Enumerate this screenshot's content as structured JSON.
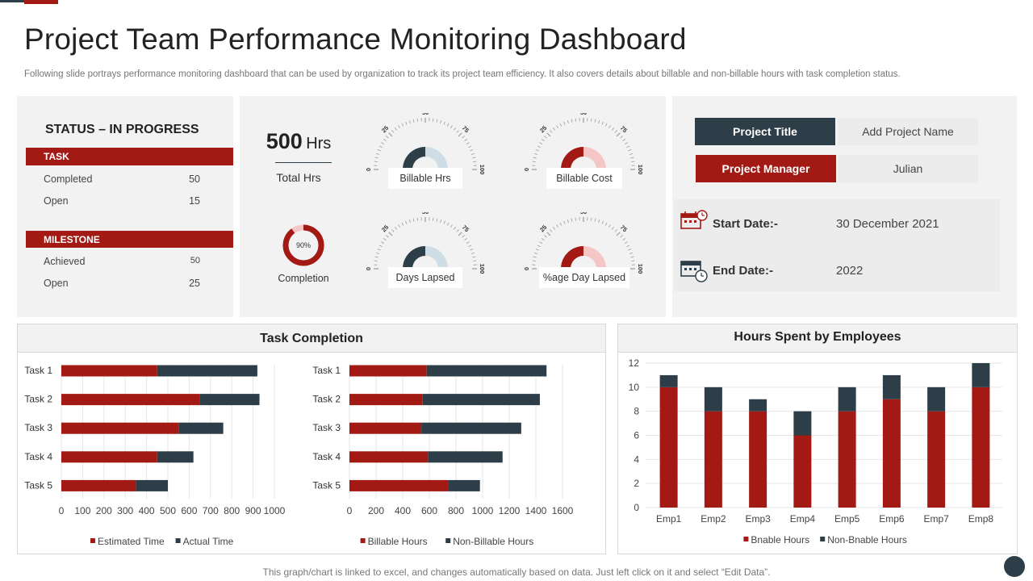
{
  "header": {
    "title": "Project Team Performance Monitoring Dashboard",
    "subtitle": "Following slide portrays performance monitoring dashboard that can be used by organization to track its project team efficiency. It also covers details about billable and non-billable hours with task completion status."
  },
  "status": {
    "title": "STATUS – IN PROGRESS",
    "task_header": "TASK",
    "task_rows": [
      {
        "label": "Completed",
        "value": "50"
      },
      {
        "label": "Open",
        "value": "15"
      }
    ],
    "milestone_header": "MILESTONE",
    "milestone_rows": [
      {
        "label": "Achieved",
        "value": "50"
      },
      {
        "label": "Open",
        "value": "25"
      }
    ]
  },
  "kpis": {
    "total_hrs_value": "500",
    "total_hrs_unit": "Hrs",
    "total_hrs_label": "Total Hrs",
    "completion_pct_text": "90%",
    "completion_pct": 90,
    "completion_label": "Completion"
  },
  "gauges": [
    {
      "label": "Billable Hrs",
      "value": 50,
      "color": "#2d3e48",
      "rest": "#cfdde6"
    },
    {
      "label": "Billable Cost",
      "value": 50,
      "color": "#a31a15",
      "rest": "#f4c6c6"
    },
    {
      "label": "Days Lapsed",
      "value": 50,
      "color": "#2d3e48",
      "rest": "#cfdde6"
    },
    {
      "label": "%age Day Lapsed",
      "value": 50,
      "color": "#a31a15",
      "rest": "#f4c6c6"
    }
  ],
  "gauge_ticks": [
    "0",
    "25",
    "50",
    "75",
    "100"
  ],
  "project": {
    "title_label": "Project Title",
    "title_value": "Add Project Name",
    "manager_label": "Project Manager",
    "manager_value": "Julian",
    "start_label": "Start Date:-",
    "start_value": "30 December 2021",
    "end_label": "End Date:-",
    "end_value": "2022"
  },
  "colors": {
    "red": "#a31a15",
    "navy": "#2d3e48"
  },
  "chart_data": [
    {
      "type": "bar",
      "orientation": "horizontal",
      "stacked": true,
      "title": "Task Completion",
      "categories": [
        "Task 1",
        "Task 2",
        "Task 3",
        "Task 4",
        "Task 5"
      ],
      "series": [
        {
          "name": "Estimated Time",
          "values": [
            450,
            650,
            550,
            450,
            350
          ],
          "color": "#a31a15"
        },
        {
          "name": "Actual Time",
          "values": [
            470,
            280,
            210,
            170,
            150
          ],
          "color": "#2d3e48"
        }
      ],
      "xlim": [
        0,
        1000
      ],
      "xticks": [
        "0",
        "100",
        "200",
        "300",
        "400",
        "500",
        "600",
        "700",
        "800",
        "900",
        "1000"
      ],
      "grid": true,
      "legend": "bottom"
    },
    {
      "type": "bar",
      "orientation": "horizontal",
      "stacked": true,
      "categories": [
        "Task 1",
        "Task 2",
        "Task 3",
        "Task 4",
        "Task 5"
      ],
      "series": [
        {
          "name": "Billable Hours",
          "values": [
            580,
            550,
            540,
            590,
            740
          ],
          "color": "#a31a15"
        },
        {
          "name": "Non-Billable Hours",
          "values": [
            900,
            880,
            750,
            560,
            240
          ],
          "color": "#2d3e48"
        }
      ],
      "xlim": [
        0,
        1600
      ],
      "xticks": [
        "0",
        "200",
        "400",
        "600",
        "800",
        "1000",
        "1200",
        "1400",
        "1600"
      ],
      "grid": true,
      "legend": "bottom"
    },
    {
      "type": "bar",
      "orientation": "vertical",
      "stacked": true,
      "title": "Hours Spent by Employees",
      "categories": [
        "Emp1",
        "Emp2",
        "Emp3",
        "Emp4",
        "Emp5",
        "Emp6",
        "Emp7",
        "Emp8"
      ],
      "series": [
        {
          "name": "Bnable Hours",
          "values": [
            10,
            8,
            8,
            6,
            8,
            9,
            8,
            10
          ],
          "color": "#a31a15"
        },
        {
          "name": "Non-Bnable Hours",
          "values": [
            1,
            2,
            1,
            2,
            2,
            2,
            2,
            2
          ],
          "color": "#2d3e48"
        }
      ],
      "ylim": [
        0,
        12
      ],
      "yticks": [
        "0",
        "2",
        "4",
        "6",
        "8",
        "10",
        "12"
      ],
      "grid": true,
      "legend": "bottom"
    }
  ],
  "footer": {
    "note": "This graph/chart is linked to excel, and changes automatically based on data. Just left click on it and select “Edit Data”."
  }
}
